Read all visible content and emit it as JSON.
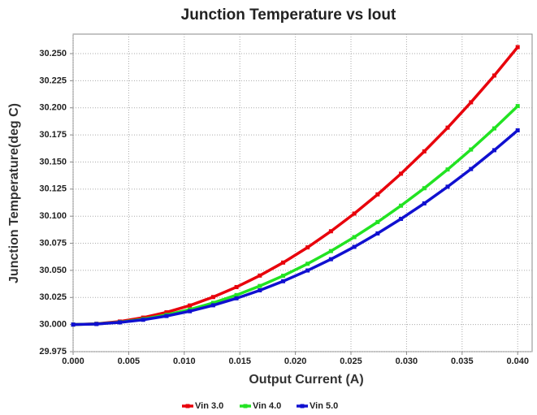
{
  "chart_data": {
    "type": "line",
    "title": "Junction Temperature vs Iout",
    "xlabel": "Output Current (A)",
    "ylabel": "Junction Temperature(deg C)",
    "x": [
      0,
      0.0021,
      0.0042,
      0.0063,
      0.0084,
      0.0105,
      0.0126,
      0.0147,
      0.0168,
      0.0189,
      0.0211,
      0.0232,
      0.0253,
      0.0274,
      0.0295,
      0.0316,
      0.0337,
      0.0358,
      0.0379,
      0.04
    ],
    "series": [
      {
        "name": "Vin 3.0",
        "color": "#e8000b",
        "values": [
          30.0,
          30.0007,
          30.0028,
          30.0064,
          30.0113,
          30.0176,
          30.0254,
          30.0346,
          30.0452,
          30.0572,
          30.0712,
          30.0861,
          30.1024,
          30.1201,
          30.1392,
          30.1598,
          30.1817,
          30.2051,
          30.2298,
          30.256
        ]
      },
      {
        "name": "Vin 4.0",
        "color": "#22e322",
        "values": [
          30.0,
          30.0006,
          30.0022,
          30.005,
          30.0089,
          30.0139,
          30.02,
          30.0272,
          30.0356,
          30.045,
          30.0561,
          30.0678,
          30.0807,
          30.0946,
          30.1097,
          30.1258,
          30.1431,
          30.1615,
          30.181,
          30.2016
        ]
      },
      {
        "name": "Vin 5.0",
        "color": "#1010d0",
        "values": [
          30.0,
          30.0005,
          30.002,
          30.0044,
          30.0079,
          30.0123,
          30.0178,
          30.0242,
          30.0316,
          30.04,
          30.0499,
          30.0603,
          30.0717,
          30.0841,
          30.0975,
          30.1118,
          30.1272,
          30.1435,
          30.1609,
          30.1792
        ]
      }
    ],
    "xlim": [
      0,
      0.0413
    ],
    "ylim": [
      29.975,
      30.268
    ],
    "xticks": [
      {
        "value": 0,
        "label": "0.000"
      },
      {
        "value": 0.005,
        "label": "0.005"
      },
      {
        "value": 0.01,
        "label": "0.010"
      },
      {
        "value": 0.015,
        "label": "0.015"
      },
      {
        "value": 0.02,
        "label": "0.020"
      },
      {
        "value": 0.025,
        "label": "0.025"
      },
      {
        "value": 0.03,
        "label": "0.030"
      },
      {
        "value": 0.035,
        "label": "0.035"
      },
      {
        "value": 0.04,
        "label": "0.040"
      }
    ],
    "yticks": [
      {
        "value": 29.975,
        "label": "29.975"
      },
      {
        "value": 30,
        "label": "30.000"
      },
      {
        "value": 30.025,
        "label": "30.025"
      },
      {
        "value": 30.05,
        "label": "30.050"
      },
      {
        "value": 30.075,
        "label": "30.075"
      },
      {
        "value": 30.1,
        "label": "30.100"
      },
      {
        "value": 30.125,
        "label": "30.125"
      },
      {
        "value": 30.15,
        "label": "30.150"
      },
      {
        "value": 30.175,
        "label": "30.175"
      },
      {
        "value": 30.2,
        "label": "30.200"
      },
      {
        "value": 30.225,
        "label": "30.225"
      },
      {
        "value": 30.25,
        "label": "30.250"
      }
    ],
    "grid": true,
    "legend": "bottom"
  }
}
